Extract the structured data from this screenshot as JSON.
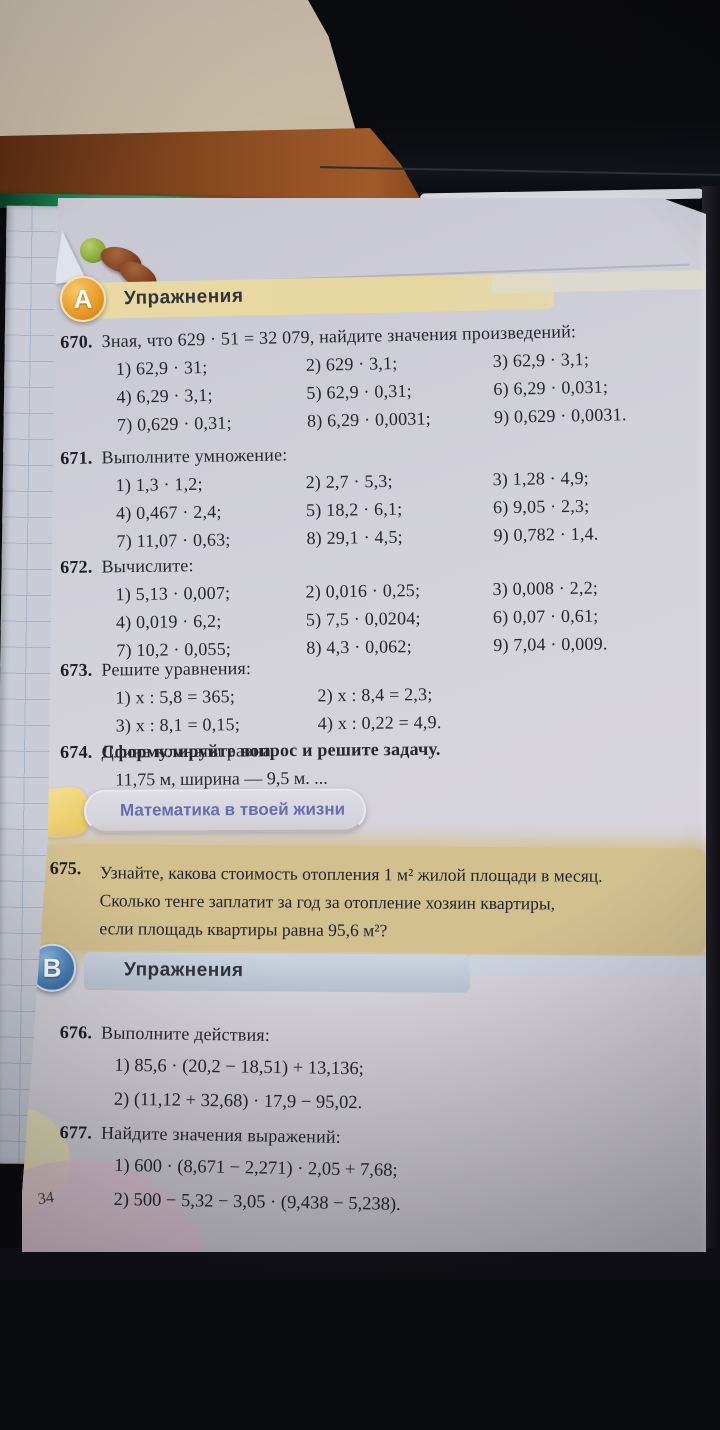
{
  "page_number": "34",
  "sections": {
    "a": {
      "badge": "А",
      "title": "Упражнения"
    },
    "life": {
      "title": "Математика в твоей жизни"
    },
    "b": {
      "badge": "В",
      "title": "Упражнения"
    }
  },
  "problems": {
    "p670": {
      "num": "670.",
      "title": "Зная, что 629 · 51 = 32 079, найдите значения произведений:",
      "items": [
        "1) 62,9 · 31;",
        "2) 629 · 3,1;",
        "3) 62,9 · 3,1;",
        "4) 6,29 · 3,1;",
        "5) 62,9 · 0,31;",
        "6) 6,29 · 0,031;",
        "7) 0,629 · 0,31;",
        "8) 6,29 · 0,0031;",
        "9) 0,629 · 0,0031."
      ]
    },
    "p671": {
      "num": "671.",
      "title": "Выполните умножение:",
      "items": [
        "1) 1,3 · 1,2;",
        "2) 2,7 · 5,3;",
        "3) 1,28 · 4,9;",
        "4) 0,467 · 2,4;",
        "5) 18,2 · 6,1;",
        "6) 9,05 · 2,3;",
        "7) 11,07 · 0,63;",
        "8) 29,1 · 4,5;",
        "9) 0,782 · 1,4."
      ]
    },
    "p672": {
      "num": "672.",
      "title": "Вычислите:",
      "items": [
        "1) 5,13 · 0,007;",
        "2) 0,016 · 0,25;",
        "3) 0,008 · 2,2;",
        "4) 0,019 · 6,2;",
        "5) 7,5 · 0,0204;",
        "6) 0,07 · 0,61;",
        "7) 10,2 · 0,055;",
        "8) 4,3 · 0,062;",
        "9) 7,04 · 0,009."
      ]
    },
    "p673": {
      "num": "673.",
      "title": "Решите уравнения:",
      "items": [
        "1) x : 5,8 = 365;",
        "2) x : 8,4 = 2,3;",
        "3) x : 8,1 = 0,15;",
        "4) x : 0,22 = 4,9."
      ]
    },
    "p674": {
      "num": "674.",
      "lead": "Сформулируйте вопрос и решите задачу.",
      "rest": "Длина комнаты равна",
      "line2": "11,75 м, ширина — 9,5 м. ..."
    },
    "p675": {
      "num": "675.",
      "lines": [
        "Узнайте, какова стоимость отопления 1 м² жилой площади в месяц.",
        "Сколько тенге заплатит за год за отопление хозяин квартиры,",
        "если площадь квартиры равна 95,6 м²?"
      ]
    },
    "p676": {
      "num": "676.",
      "title": "Выполните действия:",
      "items": [
        "1) 85,6 · (20,2 − 18,51) + 13,136;",
        "2) (11,12 + 32,68) · 17,9 − 95,02."
      ]
    },
    "p677": {
      "num": "677.",
      "title": "Найдите значения выражений:",
      "items": [
        "1) 600 · (8,671 − 2,271) · 2,05 + 7,68;",
        "2) 500 − 5,32 − 3,05 · (9,438 − 5,238)."
      ]
    }
  },
  "colors": {
    "section_a_badge": "#e89a28",
    "section_b_badge": "#4a7fb5",
    "header_band_a": "#e7d8a4",
    "header_band_b": "#c4cdd9",
    "life_title_text": "#666cb0",
    "highlight_675": "#d3c08f",
    "page_paper": "#d3d2db",
    "notebook_grid": "#a9b3c7",
    "green_book_edge": "#15794a",
    "desk_wood": "#8c4d22"
  }
}
